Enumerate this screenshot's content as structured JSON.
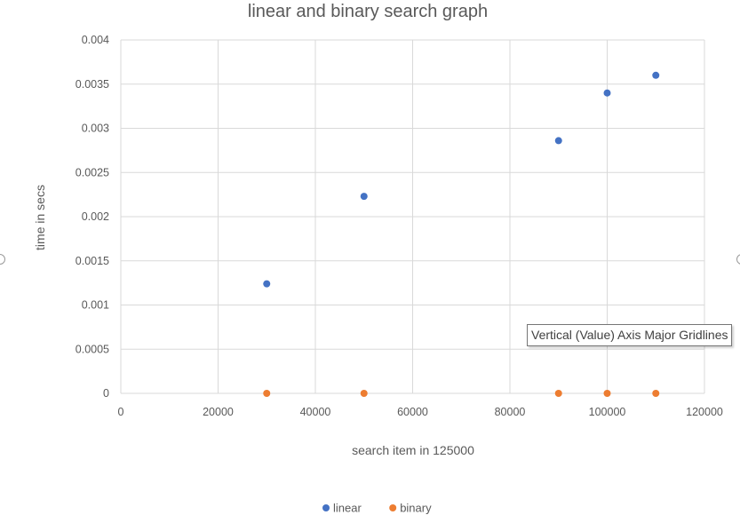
{
  "chart_data": {
    "type": "scatter",
    "title": "linear and binary search graph",
    "xlabel": "search item in 125000",
    "ylabel": "time in secs",
    "xlim": [
      0,
      120000
    ],
    "ylim": [
      0,
      0.004
    ],
    "xticks": [
      0,
      20000,
      40000,
      60000,
      80000,
      100000,
      120000
    ],
    "yticks": [
      0,
      0.0005,
      0.001,
      0.0015,
      0.002,
      0.0025,
      0.003,
      0.0035,
      0.004
    ],
    "grid": true,
    "legend_position": "bottom",
    "series": [
      {
        "name": "linear",
        "color": "#4472c4",
        "points": [
          {
            "x": 30000,
            "y": 0.00124
          },
          {
            "x": 50000,
            "y": 0.00223
          },
          {
            "x": 90000,
            "y": 0.00286
          },
          {
            "x": 100000,
            "y": 0.0034
          },
          {
            "x": 110000,
            "y": 0.0036
          }
        ]
      },
      {
        "name": "binary",
        "color": "#ed7d31",
        "points": [
          {
            "x": 30000,
            "y": 0
          },
          {
            "x": 50000,
            "y": 0
          },
          {
            "x": 90000,
            "y": 0
          },
          {
            "x": 100000,
            "y": 0
          },
          {
            "x": 110000,
            "y": 0
          }
        ]
      }
    ]
  },
  "tooltip": {
    "text": "Vertical (Value) Axis Major Gridlines"
  }
}
